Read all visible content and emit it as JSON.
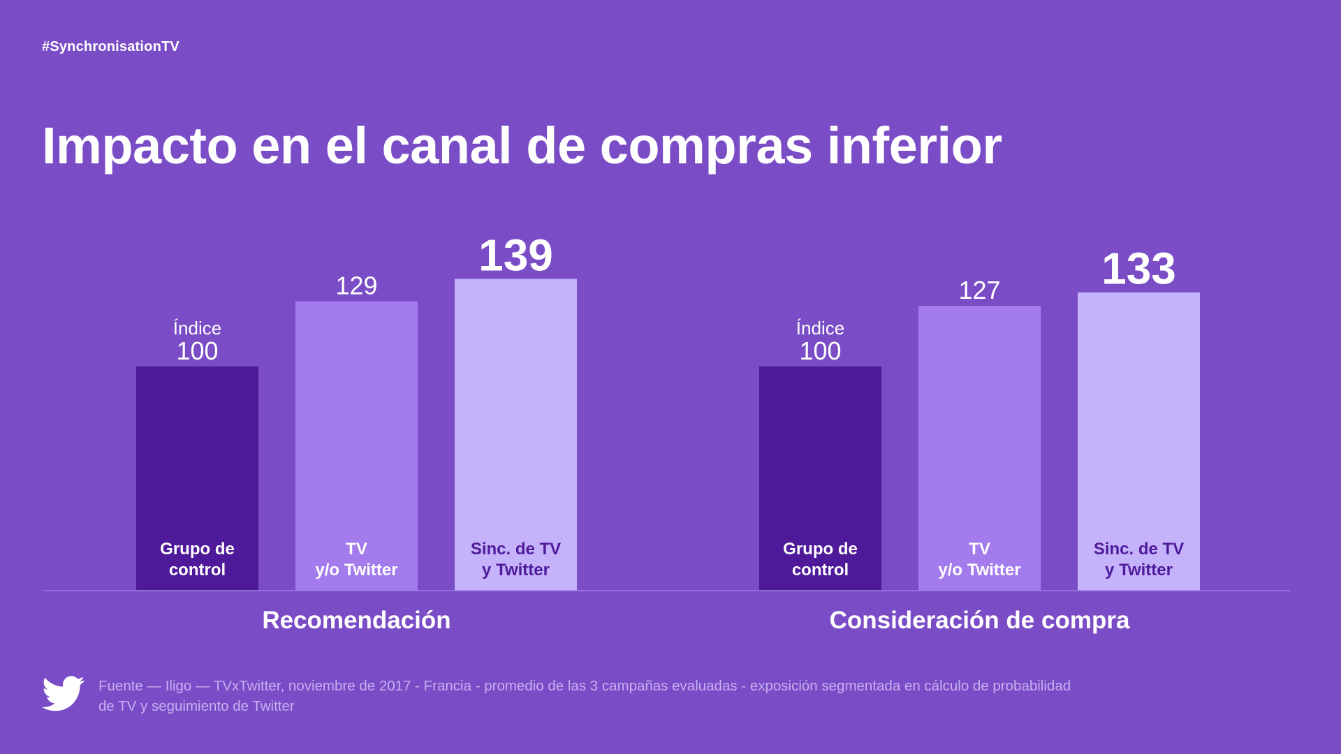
{
  "header": {
    "hashtag": "#SynchronisationTV",
    "title": "Impacto en el canal de compras inferior"
  },
  "chart_data": {
    "type": "bar",
    "value_prefix": "Índice",
    "ylim": [
      0,
      139
    ],
    "colors": {
      "control": "#4f1a99",
      "tv_or_twitter": "#a37bec",
      "sync": "#c4b3fb",
      "baseline": "#9d7fe3"
    },
    "groups": [
      {
        "name": "Recomendación",
        "bars": [
          {
            "label_lines": [
              "Grupo de",
              "control"
            ],
            "value": 100,
            "series": "control"
          },
          {
            "label_lines": [
              "TV",
              "y/o Twitter"
            ],
            "value": 129,
            "series": "tv_or_twitter"
          },
          {
            "label_lines": [
              "Sinc. de TV",
              "y Twitter"
            ],
            "value": 139,
            "series": "sync"
          }
        ]
      },
      {
        "name": "Consideración de compra",
        "bars": [
          {
            "label_lines": [
              "Grupo de",
              "control"
            ],
            "value": 100,
            "series": "control"
          },
          {
            "label_lines": [
              "TV",
              "y/o Twitter"
            ],
            "value": 127,
            "series": "tv_or_twitter"
          },
          {
            "label_lines": [
              "Sinc. de TV",
              "y Twitter"
            ],
            "value": 133,
            "series": "sync"
          }
        ]
      }
    ]
  },
  "footer": {
    "icon": "twitter-bird-icon",
    "source_line1": "Fuente — Iligo — TVxTwitter, noviembre de 2017 - Francia - promedio de las 3 campañas evaluadas - exposición segmentada en cálculo de probabilidad",
    "source_line2": "de TV y seguimiento de Twitter"
  }
}
